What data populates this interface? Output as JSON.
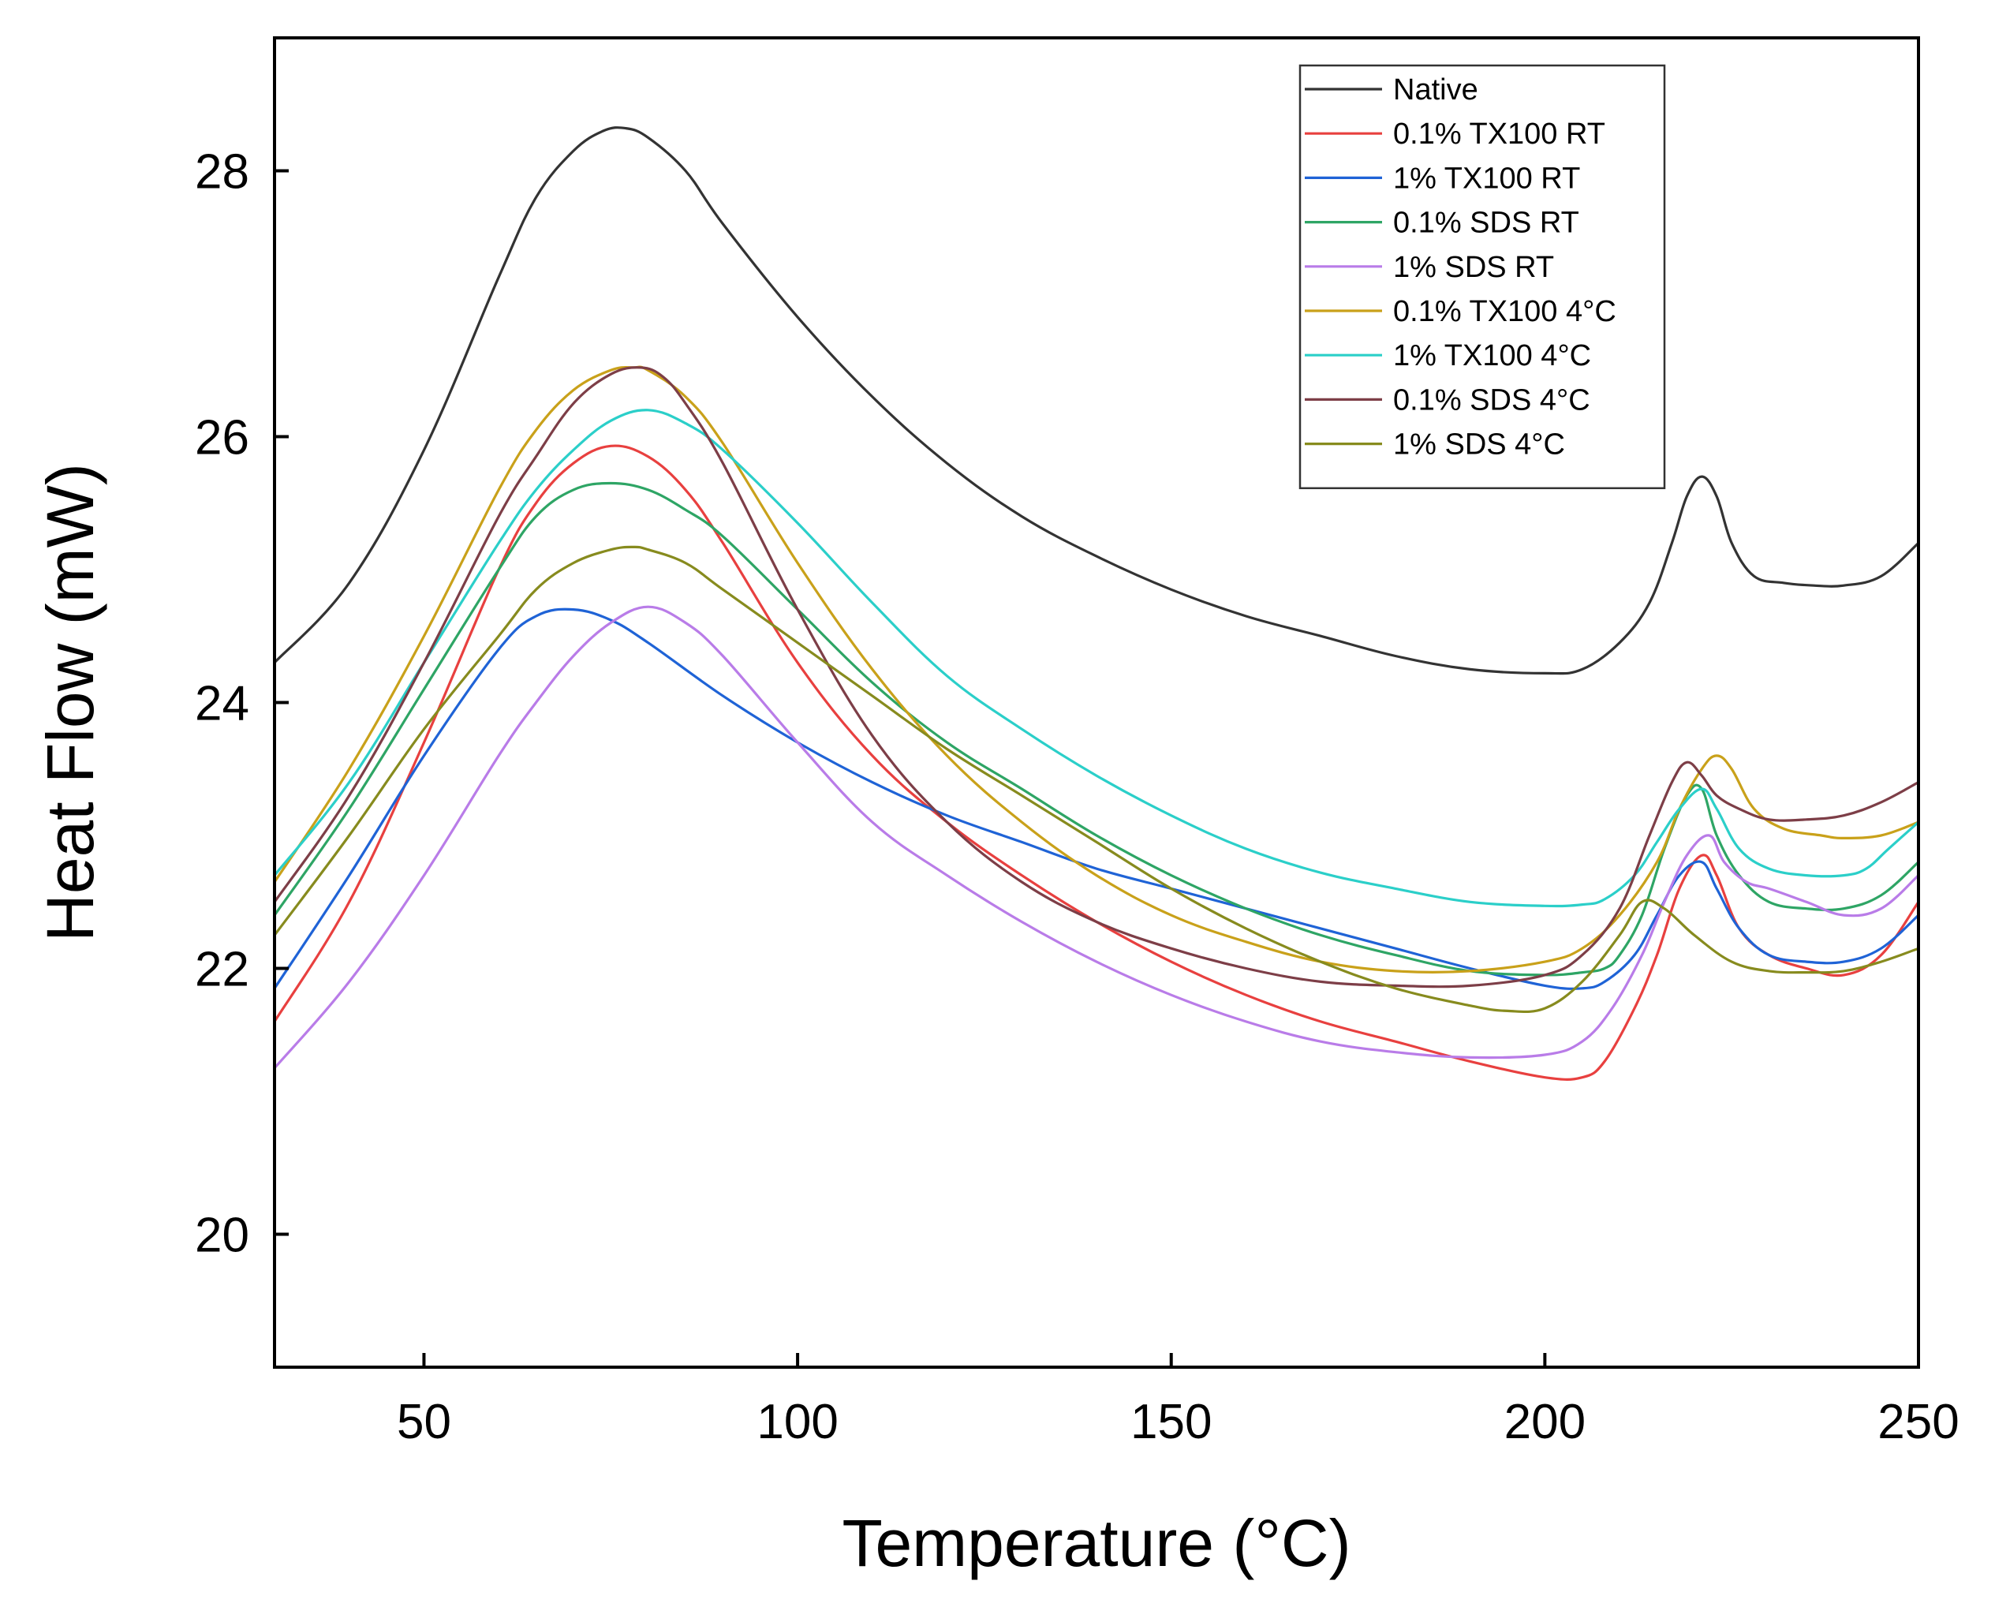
{
  "chart_data": {
    "type": "line",
    "title": "",
    "xlabel": "Temperature (°C)",
    "ylabel": "Heat Flow (mW)",
    "xlim": [
      30,
      250
    ],
    "ylim": [
      19,
      29
    ],
    "xticks": [
      50,
      100,
      150,
      200,
      250
    ],
    "yticks": [
      20,
      22,
      24,
      26,
      28
    ],
    "legend_position": "top-right",
    "grid": false,
    "series": [
      {
        "name": "Native",
        "color": "#333333",
        "x": [
          30,
          40,
          50,
          60,
          65,
          70,
          74,
          77,
          80,
          85,
          90,
          100,
          110,
          120,
          130,
          140,
          150,
          160,
          170,
          180,
          190,
          200,
          205,
          210,
          214,
          217,
          219,
          221,
          223,
          225,
          228,
          232,
          236,
          240,
          245,
          250
        ],
        "y": [
          24.3,
          24.9,
          25.9,
          27.2,
          27.8,
          28.15,
          28.3,
          28.32,
          28.25,
          28.0,
          27.6,
          26.9,
          26.3,
          25.8,
          25.4,
          25.1,
          24.85,
          24.65,
          24.5,
          24.35,
          24.25,
          24.22,
          24.25,
          24.45,
          24.75,
          25.2,
          25.55,
          25.7,
          25.55,
          25.2,
          24.95,
          24.9,
          24.88,
          24.88,
          24.95,
          25.2
        ]
      },
      {
        "name": "0.1% TX100 RT",
        "color": "#e8403f",
        "x": [
          30,
          40,
          50,
          60,
          65,
          70,
          75,
          80,
          85,
          90,
          100,
          110,
          120,
          130,
          140,
          150,
          160,
          170,
          180,
          190,
          200,
          205,
          208,
          212,
          215,
          218,
          221,
          223,
          226,
          230,
          235,
          240,
          245,
          250
        ],
        "y": [
          21.6,
          22.5,
          23.7,
          25.0,
          25.5,
          25.8,
          25.93,
          25.85,
          25.6,
          25.2,
          24.3,
          23.6,
          23.1,
          22.7,
          22.35,
          22.05,
          21.8,
          21.6,
          21.45,
          21.3,
          21.18,
          21.18,
          21.3,
          21.7,
          22.1,
          22.6,
          22.85,
          22.7,
          22.3,
          22.1,
          22.0,
          21.95,
          22.1,
          22.5
        ]
      },
      {
        "name": "1% TX100 RT",
        "color": "#1f63d6",
        "x": [
          30,
          40,
          50,
          60,
          65,
          70,
          75,
          80,
          90,
          100,
          110,
          120,
          130,
          140,
          150,
          160,
          170,
          180,
          190,
          200,
          205,
          208,
          212,
          215,
          218,
          221,
          223,
          226,
          230,
          235,
          240,
          245,
          250
        ],
        "y": [
          21.85,
          22.7,
          23.6,
          24.4,
          24.65,
          24.7,
          24.62,
          24.45,
          24.05,
          23.7,
          23.4,
          23.15,
          22.95,
          22.75,
          22.6,
          22.45,
          22.3,
          22.15,
          22.0,
          21.87,
          21.85,
          21.9,
          22.1,
          22.4,
          22.7,
          22.8,
          22.6,
          22.3,
          22.1,
          22.05,
          22.05,
          22.15,
          22.4
        ]
      },
      {
        "name": "0.1% SDS RT",
        "color": "#2ea565",
        "x": [
          30,
          40,
          50,
          60,
          65,
          70,
          75,
          80,
          85,
          90,
          100,
          110,
          120,
          130,
          140,
          150,
          160,
          170,
          180,
          190,
          200,
          205,
          208,
          210,
          213,
          216,
          219,
          221,
          223,
          226,
          230,
          235,
          240,
          245,
          250
        ],
        "y": [
          22.4,
          23.2,
          24.1,
          25.0,
          25.4,
          25.6,
          25.65,
          25.6,
          25.45,
          25.25,
          24.7,
          24.15,
          23.7,
          23.35,
          23.0,
          22.7,
          22.45,
          22.25,
          22.1,
          21.98,
          21.95,
          21.97,
          22.0,
          22.1,
          22.4,
          22.9,
          23.3,
          23.35,
          23.0,
          22.7,
          22.5,
          22.45,
          22.45,
          22.55,
          22.8
        ]
      },
      {
        "name": "1% SDS RT",
        "color": "#b97ce8",
        "x": [
          30,
          40,
          50,
          60,
          65,
          70,
          75,
          80,
          85,
          90,
          100,
          110,
          120,
          130,
          140,
          150,
          160,
          170,
          180,
          190,
          200,
          205,
          209,
          213,
          216,
          219,
          222,
          224,
          227,
          230,
          235,
          240,
          245,
          250
        ],
        "y": [
          21.25,
          21.9,
          22.7,
          23.6,
          24.0,
          24.35,
          24.6,
          24.72,
          24.6,
          24.35,
          23.7,
          23.1,
          22.7,
          22.35,
          22.05,
          21.8,
          21.6,
          21.45,
          21.37,
          21.33,
          21.35,
          21.45,
          21.7,
          22.1,
          22.5,
          22.85,
          23.0,
          22.8,
          22.65,
          22.6,
          22.5,
          22.4,
          22.45,
          22.7
        ]
      },
      {
        "name": "0.1% TX100 4°C",
        "color": "#c9a11a",
        "x": [
          30,
          40,
          50,
          60,
          65,
          70,
          75,
          78,
          80,
          85,
          90,
          100,
          110,
          120,
          130,
          140,
          150,
          160,
          170,
          180,
          190,
          200,
          205,
          210,
          215,
          218,
          221,
          223,
          225,
          228,
          232,
          237,
          240,
          245,
          250
        ],
        "y": [
          22.65,
          23.5,
          24.5,
          25.6,
          26.05,
          26.35,
          26.5,
          26.52,
          26.5,
          26.3,
          25.95,
          25.05,
          24.25,
          23.6,
          23.1,
          22.7,
          22.4,
          22.2,
          22.05,
          21.98,
          21.98,
          22.05,
          22.15,
          22.4,
          22.8,
          23.2,
          23.5,
          23.6,
          23.5,
          23.2,
          23.05,
          23.0,
          22.98,
          23.0,
          23.1
        ]
      },
      {
        "name": "1% TX100 4°C",
        "color": "#2bcfc9",
        "x": [
          30,
          40,
          50,
          60,
          65,
          70,
          75,
          80,
          85,
          90,
          100,
          110,
          120,
          130,
          140,
          150,
          160,
          170,
          180,
          190,
          200,
          205,
          208,
          212,
          215,
          218,
          221,
          223,
          226,
          230,
          235,
          240,
          243,
          246,
          250
        ],
        "y": [
          22.7,
          23.4,
          24.3,
          25.2,
          25.6,
          25.9,
          26.12,
          26.2,
          26.1,
          25.9,
          25.35,
          24.75,
          24.2,
          23.8,
          23.45,
          23.15,
          22.9,
          22.72,
          22.6,
          22.5,
          22.47,
          22.48,
          22.52,
          22.7,
          22.95,
          23.2,
          23.35,
          23.2,
          22.9,
          22.75,
          22.7,
          22.7,
          22.75,
          22.9,
          23.1
        ]
      },
      {
        "name": "0.1% SDS 4°C",
        "color": "#7d3e47",
        "x": [
          30,
          40,
          50,
          60,
          65,
          70,
          75,
          79,
          82,
          85,
          90,
          100,
          110,
          120,
          130,
          140,
          150,
          160,
          170,
          180,
          190,
          200,
          205,
          210,
          214,
          217,
          219,
          221,
          223,
          226,
          230,
          235,
          240,
          245,
          250
        ],
        "y": [
          22.5,
          23.3,
          24.3,
          25.4,
          25.85,
          26.25,
          26.47,
          26.52,
          26.45,
          26.25,
          25.8,
          24.7,
          23.75,
          23.1,
          22.65,
          22.35,
          22.15,
          22.0,
          21.9,
          21.87,
          21.87,
          21.95,
          22.1,
          22.45,
          23.0,
          23.4,
          23.55,
          23.45,
          23.3,
          23.2,
          23.12,
          23.12,
          23.15,
          23.25,
          23.4
        ]
      },
      {
        "name": "1% SDS 4°C",
        "color": "#878b1e",
        "x": [
          30,
          40,
          50,
          60,
          65,
          70,
          75,
          78,
          80,
          85,
          90,
          100,
          110,
          120,
          130,
          140,
          150,
          160,
          170,
          180,
          190,
          195,
          200,
          205,
          210,
          213,
          216,
          220,
          225,
          230,
          235,
          240,
          245,
          250
        ],
        "y": [
          22.25,
          23.0,
          23.8,
          24.5,
          24.85,
          25.05,
          25.15,
          25.17,
          25.15,
          25.05,
          24.85,
          24.45,
          24.05,
          23.65,
          23.3,
          22.95,
          22.6,
          22.3,
          22.05,
          21.85,
          21.72,
          21.68,
          21.7,
          21.9,
          22.25,
          22.5,
          22.45,
          22.25,
          22.05,
          21.98,
          21.97,
          21.98,
          22.05,
          22.15
        ]
      }
    ]
  }
}
